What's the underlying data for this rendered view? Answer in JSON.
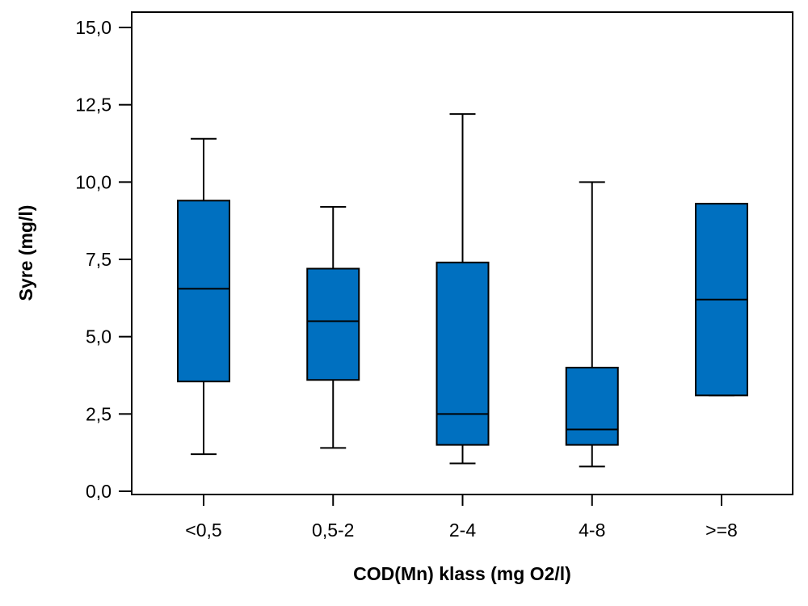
{
  "chart_data": {
    "type": "boxplot",
    "title": "",
    "xlabel": "COD(Mn) klass (mg O2/l)",
    "ylabel": "Syre (mg/l)",
    "ylim": [
      0,
      15
    ],
    "yticks": [
      "0,0",
      "2,5",
      "5,0",
      "7,5",
      "10,0",
      "12,5",
      "15,0"
    ],
    "ytick_values": [
      0,
      2.5,
      5,
      7.5,
      10,
      12.5,
      15
    ],
    "grid": false,
    "box_color": "#0070c0",
    "categories": [
      "<0,5",
      "0,5-2",
      "2-4",
      "4-8",
      ">=8"
    ],
    "boxes": [
      {
        "category": "<0,5",
        "whisker_low": 1.2,
        "q1": 3.55,
        "median": 6.55,
        "q3": 9.4,
        "whisker_high": 11.4
      },
      {
        "category": "0,5-2",
        "whisker_low": 1.4,
        "q1": 3.6,
        "median": 5.5,
        "q3": 7.2,
        "whisker_high": 9.2
      },
      {
        "category": "2-4",
        "whisker_low": 0.9,
        "q1": 1.5,
        "median": 2.5,
        "q3": 7.4,
        "whisker_high": 12.2
      },
      {
        "category": "4-8",
        "whisker_low": 0.8,
        "q1": 1.5,
        "median": 2.0,
        "q3": 4.0,
        "whisker_high": 10.0
      },
      {
        "category": ">=8",
        "whisker_low": 3.1,
        "q1": 3.1,
        "median": 6.2,
        "q3": 9.3,
        "whisker_high": 9.3
      }
    ]
  }
}
